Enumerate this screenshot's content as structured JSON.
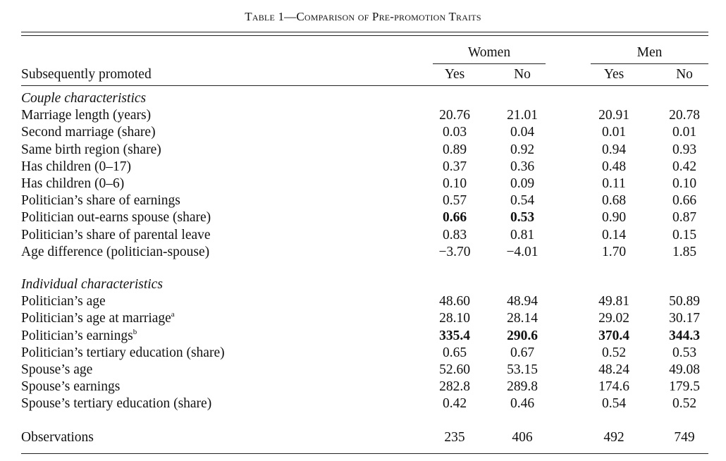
{
  "title": {
    "prefix": "Table 1",
    "dash": "—",
    "text": "Comparison of Pre-promotion Traits"
  },
  "header": {
    "row_label": "Subsequently promoted",
    "groups": [
      "Women",
      "Men"
    ],
    "subcols": [
      "Yes",
      "No",
      "Yes",
      "No"
    ]
  },
  "sections": [
    {
      "label": "Couple characteristics",
      "rows": [
        {
          "label": "Marriage length (years)",
          "sup": "",
          "values": [
            "20.76",
            "21.01",
            "20.91",
            "20.78"
          ],
          "bold": [
            false,
            false,
            false,
            false
          ]
        },
        {
          "label": "Second marriage (share)",
          "sup": "",
          "values": [
            "0.03",
            "0.04",
            "0.01",
            "0.01"
          ],
          "bold": [
            false,
            false,
            false,
            false
          ]
        },
        {
          "label": "Same birth region (share)",
          "sup": "",
          "values": [
            "0.89",
            "0.92",
            "0.94",
            "0.93"
          ],
          "bold": [
            false,
            false,
            false,
            false
          ]
        },
        {
          "label": "Has children (0–17)",
          "sup": "",
          "values": [
            "0.37",
            "0.36",
            "0.48",
            "0.42"
          ],
          "bold": [
            false,
            false,
            false,
            false
          ]
        },
        {
          "label": "Has children (0–6)",
          "sup": "",
          "values": [
            "0.10",
            "0.09",
            "0.11",
            "0.10"
          ],
          "bold": [
            false,
            false,
            false,
            false
          ]
        },
        {
          "label": "Politician’s share of earnings",
          "sup": "",
          "values": [
            "0.57",
            "0.54",
            "0.68",
            "0.66"
          ],
          "bold": [
            false,
            false,
            false,
            false
          ]
        },
        {
          "label": "Politician out-earns spouse (share)",
          "sup": "",
          "values": [
            "0.66",
            "0.53",
            "0.90",
            "0.87"
          ],
          "bold": [
            true,
            true,
            false,
            false
          ]
        },
        {
          "label": "Politician’s share of parental leave",
          "sup": "",
          "values": [
            "0.83",
            "0.81",
            "0.14",
            "0.15"
          ],
          "bold": [
            false,
            false,
            false,
            false
          ]
        },
        {
          "label": "Age difference (politician-spouse)",
          "sup": "",
          "values": [
            "−3.70",
            "−4.01",
            "1.70",
            "1.85"
          ],
          "bold": [
            false,
            false,
            false,
            false
          ]
        }
      ]
    },
    {
      "label": "Individual characteristics",
      "rows": [
        {
          "label": "Politician’s age",
          "sup": "",
          "values": [
            "48.60",
            "48.94",
            "49.81",
            "50.89"
          ],
          "bold": [
            false,
            false,
            false,
            false
          ]
        },
        {
          "label": "Politician’s age at marriage",
          "sup": "a",
          "values": [
            "28.10",
            "28.14",
            "29.02",
            "30.17"
          ],
          "bold": [
            false,
            false,
            false,
            false
          ]
        },
        {
          "label": "Politician’s earnings",
          "sup": "b",
          "values": [
            "335.4",
            "290.6",
            "370.4",
            "344.3"
          ],
          "bold": [
            true,
            true,
            true,
            true
          ]
        },
        {
          "label": "Politician’s tertiary education (share)",
          "sup": "",
          "values": [
            "0.65",
            "0.67",
            "0.52",
            "0.53"
          ],
          "bold": [
            false,
            false,
            false,
            false
          ]
        },
        {
          "label": "Spouse’s age",
          "sup": "",
          "values": [
            "52.60",
            "53.15",
            "48.24",
            "49.08"
          ],
          "bold": [
            false,
            false,
            false,
            false
          ]
        },
        {
          "label": "Spouse’s earnings",
          "sup": "",
          "values": [
            "282.8",
            "289.8",
            "174.6",
            "179.5"
          ],
          "bold": [
            false,
            false,
            false,
            false
          ]
        },
        {
          "label": "Spouse’s tertiary education (share)",
          "sup": "",
          "values": [
            "0.42",
            "0.46",
            "0.54",
            "0.52"
          ],
          "bold": [
            false,
            false,
            false,
            false
          ]
        }
      ]
    }
  ],
  "observations": {
    "label": "Observations",
    "values": [
      "235",
      "406",
      "492",
      "749"
    ]
  }
}
